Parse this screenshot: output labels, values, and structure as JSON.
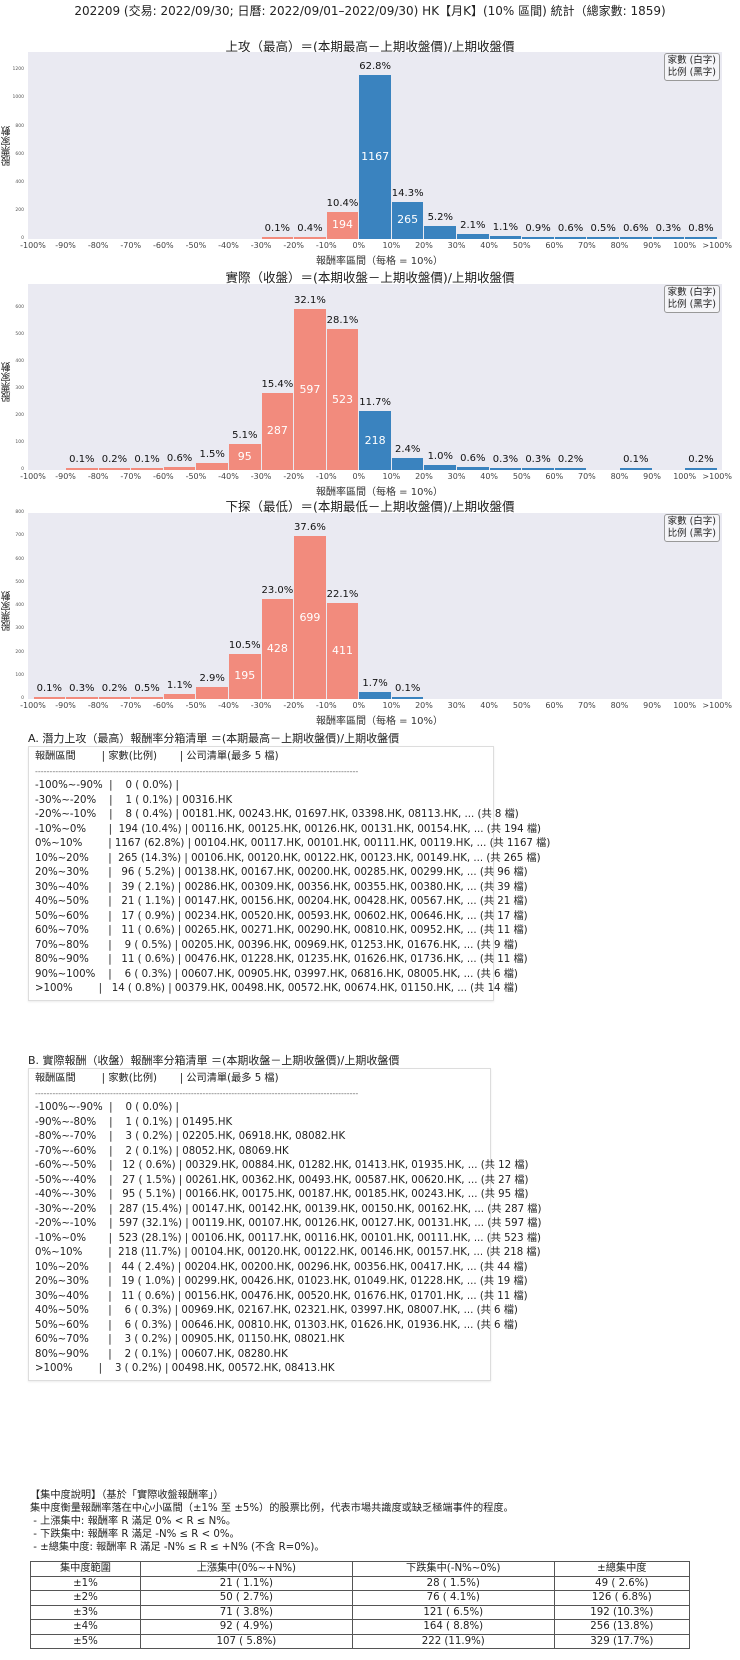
{
  "header": {
    "title": "202209 (交易: 2022/09/30; 日曆: 2022/09/01–2022/09/30) HK【月K】(10% 區間) 統計（總家數: 1859)"
  },
  "legend": {
    "line1": "家數 (白字)",
    "line2": "比例 (黑字)"
  },
  "colors": {
    "negative": "#f28b7d",
    "positive": "#3a83bf",
    "plot_bg": "#eaeaf2"
  },
  "chart_data": [
    {
      "type": "bar",
      "title": "上攻（最高）＝(本期最高－上期收盤價)/上期收盤價",
      "xlabel": "報酬率區間（每格 = 10%）",
      "ylabel": "股票家數",
      "yticks": [
        "0",
        "200",
        "400",
        "600",
        "800",
        "1000",
        "1200"
      ],
      "ylim": [
        0,
        1330
      ],
      "categories": [
        "-100%~-90%",
        "-90%~-80%",
        "-80%~-70%",
        "-70%~-60%",
        "-60%~-50%",
        "-50%~-40%",
        "-40%~-30%",
        "-30%~-20%",
        "-20%~-10%",
        "-10%~0%",
        "0%~10%",
        "10%~20%",
        "20%~30%",
        "30%~40%",
        "40%~50%",
        "50%~60%",
        "60%~70%",
        "70%~80%",
        "80%~90%",
        "90%~100%",
        ">100%"
      ],
      "values": [
        0,
        0,
        0,
        0,
        0,
        0,
        0,
        1,
        8,
        194,
        1167,
        265,
        96,
        39,
        21,
        17,
        11,
        9,
        11,
        6,
        14
      ],
      "percents": [
        "",
        "",
        "",
        "",
        "",
        "",
        "",
        "0.1%",
        "0.4%",
        "10.4%",
        "62.8%",
        "14.3%",
        "5.2%",
        "2.1%",
        "1.1%",
        "0.9%",
        "0.6%",
        "0.5%",
        "0.6%",
        "0.3%",
        "0.8%"
      ]
    },
    {
      "type": "bar",
      "title": "實際（收盤）＝(本期收盤－上期收盤價)/上期收盤價",
      "xlabel": "報酬率區間（每格 = 10%）",
      "ylabel": "股票家數",
      "yticks": [
        "0",
        "100",
        "200",
        "300",
        "400",
        "500",
        "600"
      ],
      "ylim": [
        0,
        690
      ],
      "categories": [
        "-100%~-90%",
        "-90%~-80%",
        "-80%~-70%",
        "-70%~-60%",
        "-60%~-50%",
        "-50%~-40%",
        "-40%~-30%",
        "-30%~-20%",
        "-20%~-10%",
        "-10%~0%",
        "0%~10%",
        "10%~20%",
        "20%~30%",
        "30%~40%",
        "40%~50%",
        "50%~60%",
        "60%~70%",
        "70%~80%",
        "80%~90%",
        "90%~100%",
        ">100%"
      ],
      "values": [
        0,
        1,
        3,
        2,
        12,
        27,
        95,
        287,
        597,
        523,
        218,
        44,
        19,
        11,
        6,
        6,
        3,
        0,
        2,
        0,
        3
      ],
      "percents": [
        "",
        "0.1%",
        "0.2%",
        "0.1%",
        "0.6%",
        "1.5%",
        "5.1%",
        "15.4%",
        "32.1%",
        "28.1%",
        "11.7%",
        "2.4%",
        "1.0%",
        "0.6%",
        "0.3%",
        "0.3%",
        "0.2%",
        "",
        "0.1%",
        "",
        "0.2%"
      ]
    },
    {
      "type": "bar",
      "title": "下探（最低）＝(本期最低－上期收盤價)/上期收盤價",
      "xlabel": "報酬率區間（每格 = 10%）",
      "ylabel": "股票家數",
      "yticks": [
        "0",
        "100",
        "200",
        "300",
        "400",
        "500",
        "600",
        "700",
        "800"
      ],
      "ylim": [
        0,
        800
      ],
      "categories": [
        "-100%~-90%",
        "-90%~-80%",
        "-80%~-70%",
        "-70%~-60%",
        "-60%~-50%",
        "-50%~-40%",
        "-40%~-30%",
        "-30%~-20%",
        "-20%~-10%",
        "-10%~0%",
        "0%~10%",
        "10%~20%",
        "20%~30%",
        "30%~40%",
        "40%~50%",
        "50%~60%",
        "60%~70%",
        "70%~80%",
        "80%~90%",
        "90%~100%",
        ">100%"
      ],
      "values": [
        1,
        5,
        4,
        10,
        21,
        53,
        195,
        428,
        699,
        411,
        31,
        1,
        0,
        0,
        0,
        0,
        0,
        0,
        0,
        0,
        0
      ],
      "percents": [
        "0.1%",
        "0.3%",
        "0.2%",
        "0.5%",
        "1.1%",
        "2.9%",
        "10.5%",
        "23.0%",
        "37.6%",
        "22.1%",
        "1.7%",
        "0.1%",
        "",
        "",
        "",
        "",
        "",
        "",
        "",
        "",
        ""
      ]
    }
  ],
  "xticks": [
    "-100%",
    "-90%",
    "-80%",
    "-70%",
    "-60%",
    "-50%",
    "-40%",
    "-30%",
    "-20%",
    "-10%",
    "0%",
    "10%",
    "20%",
    "30%",
    "40%",
    "50%",
    "60%",
    "70%",
    "80%",
    "90%",
    "100%",
    ">100%"
  ],
  "section_a": {
    "title": "A. 潛力上攻（最高）報酬率分箱清單 ＝(本期最高－上期收盤價)/上期收盤價",
    "header": "報酬區間        | 家數(比例)       | 公司清單(最多 5 檔)",
    "separator": "----------------------------------------------------------------------------------------------------------------",
    "rows": [
      "-100%~-90%  |    0 ( 0.0%) |",
      "-30%~-20%    |    1 ( 0.1%) | 00316.HK",
      "-20%~-10%    |    8 ( 0.4%) | 00181.HK, 00243.HK, 01697.HK, 03398.HK, 08113.HK, ... (共 8 檔)",
      "-10%~0%       |  194 (10.4%) | 00116.HK, 00125.HK, 00126.HK, 00131.HK, 00154.HK, ... (共 194 檔)",
      "0%~10%        | 1167 (62.8%) | 00104.HK, 00117.HK, 00101.HK, 00111.HK, 00119.HK, ... (共 1167 檔)",
      "10%~20%      |  265 (14.3%) | 00106.HK, 00120.HK, 00122.HK, 00123.HK, 00149.HK, ... (共 265 檔)",
      "20%~30%      |   96 ( 5.2%) | 00138.HK, 00167.HK, 00200.HK, 00285.HK, 00299.HK, ... (共 96 檔)",
      "30%~40%      |   39 ( 2.1%) | 00286.HK, 00309.HK, 00356.HK, 00355.HK, 00380.HK, ... (共 39 檔)",
      "40%~50%      |   21 ( 1.1%) | 00147.HK, 00156.HK, 00204.HK, 00428.HK, 00567.HK, ... (共 21 檔)",
      "50%~60%      |   17 ( 0.9%) | 00234.HK, 00520.HK, 00593.HK, 00602.HK, 00646.HK, ... (共 17 檔)",
      "60%~70%      |   11 ( 0.6%) | 00265.HK, 00271.HK, 00290.HK, 00810.HK, 00952.HK, ... (共 11 檔)",
      "70%~80%      |    9 ( 0.5%) | 00205.HK, 00396.HK, 00969.HK, 01253.HK, 01676.HK, ... (共 9 檔)",
      "80%~90%      |   11 ( 0.6%) | 00476.HK, 01228.HK, 01235.HK, 01626.HK, 01736.HK, ... (共 11 檔)",
      "90%~100%    |    6 ( 0.3%) | 00607.HK, 00905.HK, 03997.HK, 06816.HK, 08005.HK, ... (共 6 檔)",
      ">100%        |   14 ( 0.8%) | 00379.HK, 00498.HK, 00572.HK, 00674.HK, 01150.HK, ... (共 14 檔)"
    ]
  },
  "section_b": {
    "title": "B. 實際報酬（收盤）報酬率分箱清單 ＝(本期收盤－上期收盤價)/上期收盤價",
    "header": "報酬區間        | 家數(比例)       | 公司清單(最多 5 檔)",
    "separator": "----------------------------------------------------------------------------------------------------------------",
    "rows": [
      "-100%~-90%  |    0 ( 0.0%) |",
      "-90%~-80%    |    1 ( 0.1%) | 01495.HK",
      "-80%~-70%    |    3 ( 0.2%) | 02205.HK, 06918.HK, 08082.HK",
      "-70%~-60%    |    2 ( 0.1%) | 08052.HK, 08069.HK",
      "-60%~-50%    |   12 ( 0.6%) | 00329.HK, 00884.HK, 01282.HK, 01413.HK, 01935.HK, ... (共 12 檔)",
      "-50%~-40%    |   27 ( 1.5%) | 00261.HK, 00362.HK, 00493.HK, 00587.HK, 00620.HK, ... (共 27 檔)",
      "-40%~-30%    |   95 ( 5.1%) | 00166.HK, 00175.HK, 00187.HK, 00185.HK, 00243.HK, ... (共 95 檔)",
      "-30%~-20%    |  287 (15.4%) | 00147.HK, 00142.HK, 00139.HK, 00150.HK, 00162.HK, ... (共 287 檔)",
      "-20%~-10%    |  597 (32.1%) | 00119.HK, 00107.HK, 00126.HK, 00127.HK, 00131.HK, ... (共 597 檔)",
      "-10%~0%       |  523 (28.1%) | 00106.HK, 00117.HK, 00116.HK, 00101.HK, 00111.HK, ... (共 523 檔)",
      "0%~10%        |  218 (11.7%) | 00104.HK, 00120.HK, 00122.HK, 00146.HK, 00157.HK, ... (共 218 檔)",
      "10%~20%      |   44 ( 2.4%) | 00204.HK, 00200.HK, 00296.HK, 00356.HK, 00417.HK, ... (共 44 檔)",
      "20%~30%      |   19 ( 1.0%) | 00299.HK, 00426.HK, 01023.HK, 01049.HK, 01228.HK, ... (共 19 檔)",
      "30%~40%      |   11 ( 0.6%) | 00156.HK, 00476.HK, 00520.HK, 01676.HK, 01701.HK, ... (共 11 檔)",
      "40%~50%      |    6 ( 0.3%) | 00969.HK, 02167.HK, 02321.HK, 03997.HK, 08007.HK, ... (共 6 檔)",
      "50%~60%      |    6 ( 0.3%) | 00646.HK, 00810.HK, 01303.HK, 01626.HK, 01936.HK, ... (共 6 檔)",
      "60%~70%      |    3 ( 0.2%) | 00905.HK, 01150.HK, 08021.HK",
      "80%~90%      |    2 ( 0.1%) | 00607.HK, 08280.HK",
      ">100%        |    3 ( 0.2%) | 00498.HK, 00572.HK, 08413.HK"
    ]
  },
  "concentration": {
    "heading": "【集中度說明】（基於「實際收盤報酬率」）",
    "desc": "集中度衡量報酬率落在中心小區間（±1% 至 ±5%）的股票比例，代表市場共識度或缺乏極端事件的程度。",
    "bullets": [
      " - 上漲集中: 報酬率 R 滿足 0% < R ≤ N%。",
      " - 下跌集中: 報酬率 R 滿足 -N% ≤ R < 0%。",
      " - ±總集中度: 報酬率 R 滿足 -N% ≤ R ≤ +N% (不含 R=0%)。"
    ],
    "table": {
      "headers": [
        "集中度範圍",
        "上漲集中(0%~+N%)",
        "下跌集中(-N%~0%)",
        "±總集中度"
      ],
      "rows": [
        [
          "±1%",
          "21 ( 1.1%)",
          "28 ( 1.5%)",
          "49 ( 2.6%)"
        ],
        [
          "±2%",
          "50 ( 2.7%)",
          "76 ( 4.1%)",
          "126 ( 6.8%)"
        ],
        [
          "±3%",
          "71 ( 3.8%)",
          "121 ( 6.5%)",
          "192 (10.3%)"
        ],
        [
          "±4%",
          "92 ( 4.9%)",
          "164 ( 8.8%)",
          "256 (13.8%)"
        ],
        [
          "±5%",
          "107 ( 5.8%)",
          "222 (11.9%)",
          "329 (17.7%)"
        ]
      ]
    }
  }
}
